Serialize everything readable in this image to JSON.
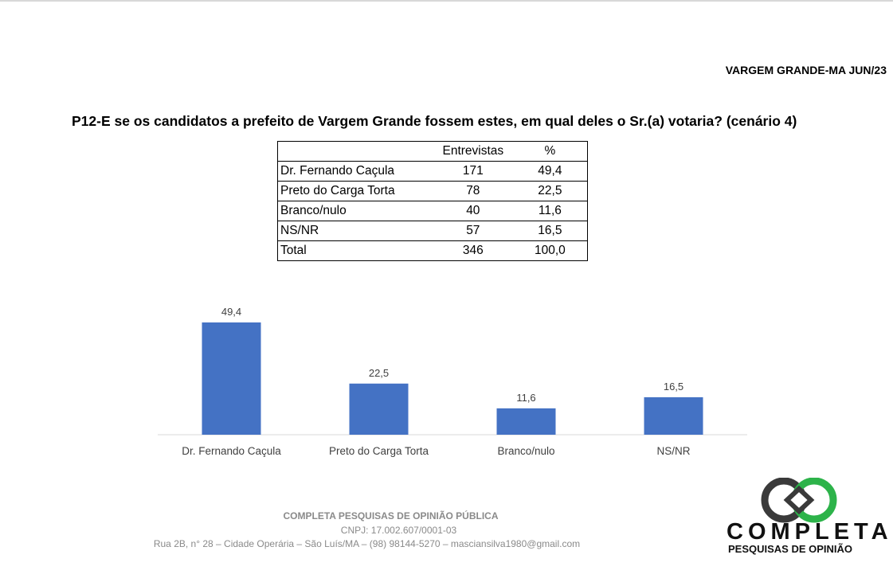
{
  "header": {
    "location_date": "VARGEM GRANDE-MA JUN/23"
  },
  "question": "P12-E se os candidatos a prefeito de Vargem Grande fossem estes, em qual deles o Sr.(a) votaria? (cenário 4)",
  "table": {
    "headers": [
      "",
      "Entrevistas",
      "%"
    ],
    "rows": [
      [
        "Dr. Fernando Caçula",
        "171",
        "49,4"
      ],
      [
        "Preto do Carga Torta",
        "78",
        "22,5"
      ],
      [
        "Branco/nulo",
        "40",
        "11,6"
      ],
      [
        "NS/NR",
        "57",
        "16,5"
      ],
      [
        "Total",
        "346",
        "100,0"
      ]
    ]
  },
  "chart_data": {
    "type": "bar",
    "categories": [
      "Dr. Fernando Caçula",
      "Preto do Carga Torta",
      "Branco/nulo",
      "NS/NR"
    ],
    "values": [
      49.4,
      22.5,
      11.6,
      16.5
    ],
    "data_labels": [
      "49,4",
      "22,5",
      "11,6",
      "16,5"
    ],
    "title": "",
    "xlabel": "",
    "ylabel": "",
    "ylim": [
      0,
      50
    ],
    "grid": false,
    "legend": "none",
    "bar_color": "#4472C4"
  },
  "footer": {
    "company": "COMPLETA PESQUISAS DE OPINIÃO PÚBLICA",
    "cnpj": "CNPJ: 17.002.607/0001-03",
    "address": "Rua 2B, n° 28 – Cidade Operária – São Luís/MA – (98) 98144-5270 – masciansilva1980@gmail.com"
  },
  "logo": {
    "name": "COMPLETA",
    "tagline": "PESQUISAS DE OPINIÃO",
    "colors": {
      "dark": "#3a3a3a",
      "green": "#2db34a"
    }
  }
}
